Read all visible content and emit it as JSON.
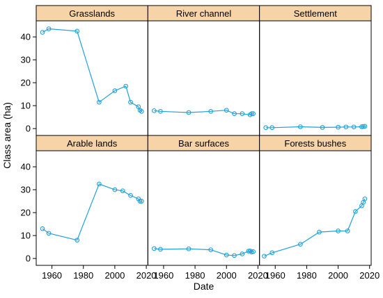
{
  "chart_data": {
    "type": "line",
    "xlabel": "Date",
    "ylabel": "Class area (ha)",
    "xlim": [
      1950,
      2021
    ],
    "ylim": [
      -3,
      47
    ],
    "x_ticks": [
      1960,
      1980,
      2000,
      2020
    ],
    "y_ticks": [
      0,
      10,
      20,
      30,
      40
    ],
    "grid": false,
    "strip_color": "#f7d3a8",
    "series_color": "#1ea0db",
    "panels": [
      {
        "name": "Grasslands",
        "points": [
          [
            1954,
            42
          ],
          [
            1958,
            43.5
          ],
          [
            1976,
            42.5
          ],
          [
            1990,
            11.5
          ],
          [
            2000,
            16.5
          ],
          [
            2007,
            18.5
          ],
          [
            2010,
            11.5
          ],
          [
            2015,
            9.5
          ],
          [
            2016,
            8
          ],
          [
            2017,
            7.5
          ]
        ]
      },
      {
        "name": "River channel",
        "points": [
          [
            1954,
            7.8
          ],
          [
            1958,
            7.5
          ],
          [
            1976,
            7.0
          ],
          [
            1990,
            7.5
          ],
          [
            2000,
            8.0
          ],
          [
            2005,
            6.5
          ],
          [
            2010,
            6.5
          ],
          [
            2015,
            6.0
          ],
          [
            2016,
            6.5
          ],
          [
            2017,
            6.5
          ]
        ]
      },
      {
        "name": "Settlement",
        "points": [
          [
            1954,
            0.4
          ],
          [
            1958,
            0.4
          ],
          [
            1976,
            0.8
          ],
          [
            1990,
            0.5
          ],
          [
            2000,
            0.6
          ],
          [
            2005,
            0.7
          ],
          [
            2010,
            0.7
          ],
          [
            2015,
            0.8
          ],
          [
            2016,
            0.9
          ],
          [
            2017,
            1.0
          ]
        ]
      },
      {
        "name": "Arable lands",
        "points": [
          [
            1954,
            13
          ],
          [
            1958,
            11
          ],
          [
            1976,
            8
          ],
          [
            1990,
            32.5
          ],
          [
            2000,
            30
          ],
          [
            2005,
            29.5
          ],
          [
            2010,
            27.5
          ],
          [
            2015,
            26
          ],
          [
            2016,
            25
          ],
          [
            2017,
            25
          ]
        ]
      },
      {
        "name": "Bar surfaces",
        "points": [
          [
            1954,
            4.3
          ],
          [
            1958,
            4.0
          ],
          [
            1976,
            4.2
          ],
          [
            1990,
            3.8
          ],
          [
            2000,
            1.5
          ],
          [
            2005,
            1.3
          ],
          [
            2010,
            2.0
          ],
          [
            2014,
            3.2
          ],
          [
            2015,
            3.3
          ],
          [
            2016,
            2.8
          ],
          [
            2017,
            3.0
          ]
        ]
      },
      {
        "name": "Forests bushes",
        "points": [
          [
            1953,
            1.0
          ],
          [
            1958,
            2.5
          ],
          [
            1976,
            6.2
          ],
          [
            1988,
            11.5
          ],
          [
            2000,
            12.0
          ],
          [
            2006,
            12.0
          ],
          [
            2011,
            20.5
          ],
          [
            2015,
            23
          ],
          [
            2016,
            24.5
          ],
          [
            2017,
            26
          ]
        ]
      }
    ]
  }
}
